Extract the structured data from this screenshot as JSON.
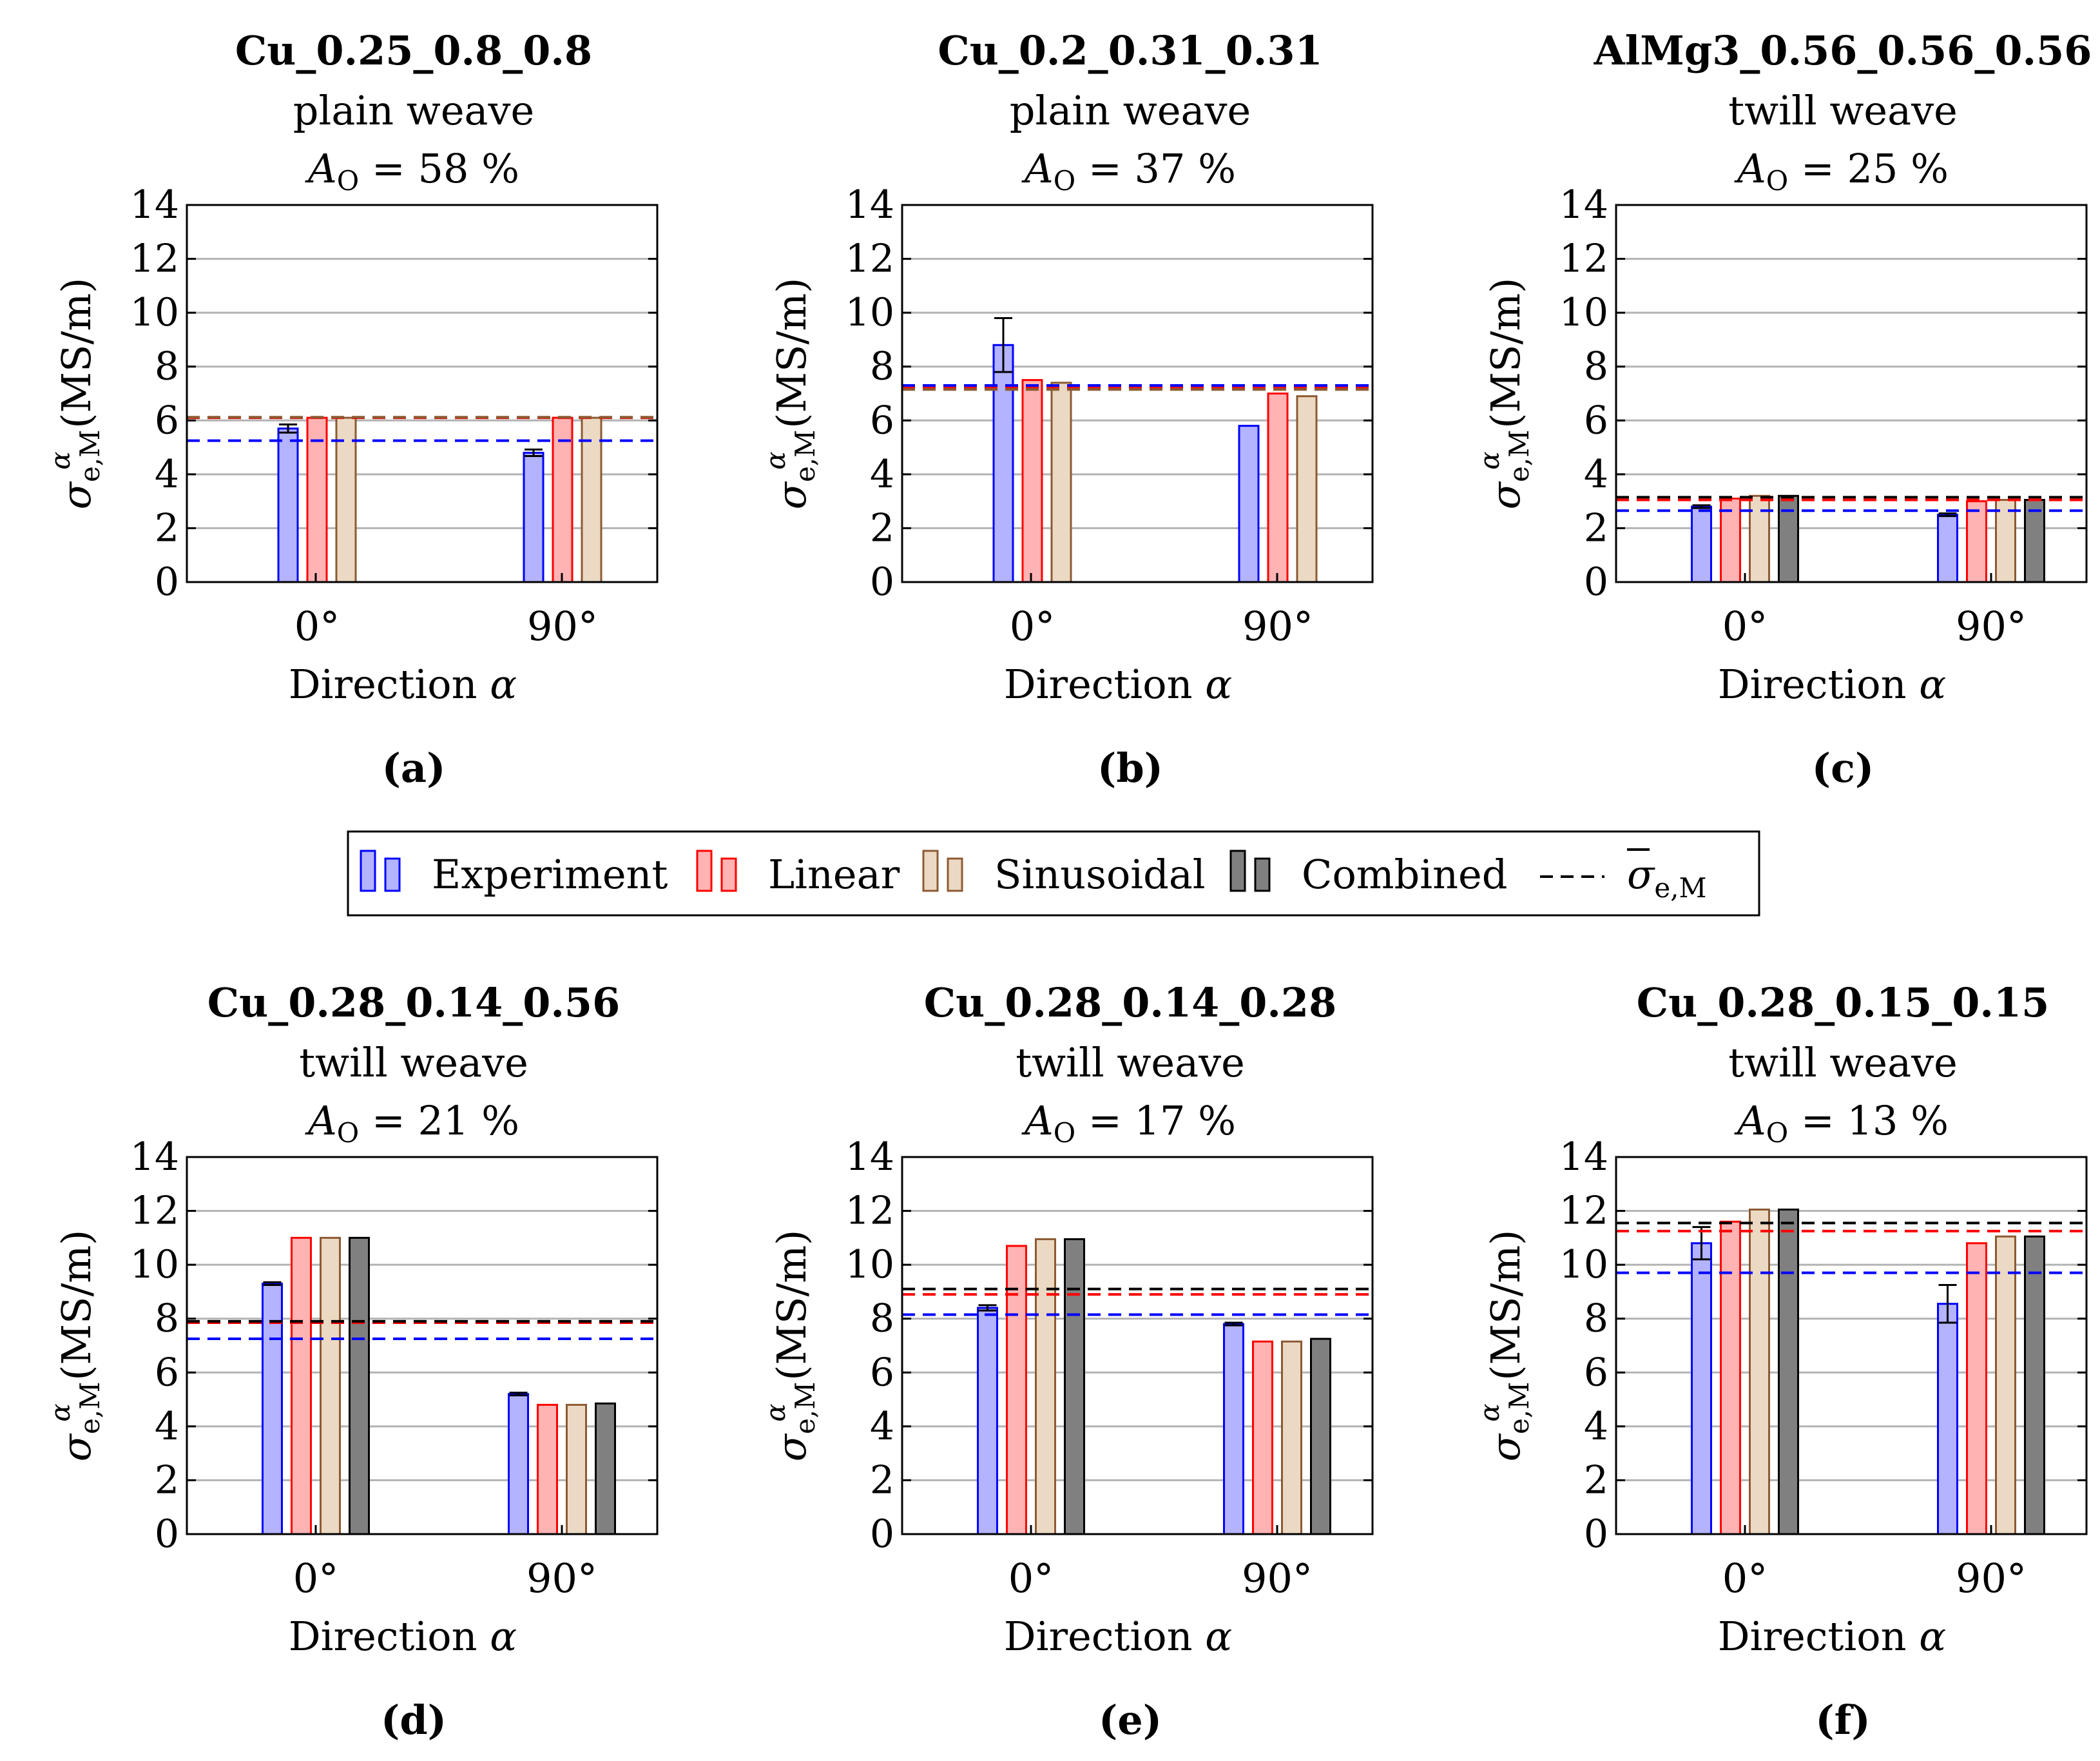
{
  "legend": {
    "items": [
      {
        "key": "experiment",
        "label": "Experiment",
        "fill": "#b3b3ff",
        "stroke": "#0000ff"
      },
      {
        "key": "linear",
        "label": "Linear",
        "fill": "#ffb3b3",
        "stroke": "#ff0000"
      },
      {
        "key": "sinusoidal",
        "label": "Sinusoidal",
        "fill": "#ecd9c3",
        "stroke": "#8c5a33"
      },
      {
        "key": "combined",
        "label": "Combined",
        "fill": "#808080",
        "stroke": "#000000"
      }
    ],
    "mean_label_sigma": "σ",
    "mean_label_sub": "e,M"
  },
  "axis": {
    "ylabel_symbol": "σ",
    "ylabel_sup": "α",
    "ylabel_sub": "e,M",
    "ylabel_unit": "(MS/m)",
    "xlabel": "Direction",
    "xlabel_symbol": "α"
  },
  "chart_data": [
    {
      "type": "bar",
      "panel": "(a)",
      "title": "Cu_0.25_0.8_0.8",
      "weave": "plain weave",
      "area_prefix": "A",
      "area_sub": "O",
      "area_value": "= 58 %",
      "categories": [
        "0°",
        "90°"
      ],
      "yticks": [
        "0",
        "2",
        "4",
        "6",
        "8",
        "10",
        "12",
        "14"
      ],
      "ylim": [
        0,
        14
      ],
      "grid": true,
      "series": [
        {
          "name": "Experiment",
          "values": [
            5.7,
            4.8
          ],
          "errors": [
            0.15,
            0.12
          ]
        },
        {
          "name": "Linear",
          "values": [
            6.1,
            6.1
          ]
        },
        {
          "name": "Sinusoidal",
          "values": [
            6.1,
            6.1
          ]
        }
      ],
      "mean_lines": [
        {
          "color": "#0000ff",
          "value": 5.25
        },
        {
          "color": "#ff0000",
          "value": 6.1
        },
        {
          "color": "#8c5a33",
          "value": 6.12
        }
      ]
    },
    {
      "type": "bar",
      "panel": "(b)",
      "title": "Cu_0.2_0.31_0.31",
      "weave": "plain weave",
      "area_prefix": "A",
      "area_sub": "O",
      "area_value": "= 37 %",
      "categories": [
        "0°",
        "90°"
      ],
      "yticks": [
        "0",
        "2",
        "4",
        "6",
        "8",
        "10",
        "12",
        "14"
      ],
      "ylim": [
        0,
        14
      ],
      "grid": true,
      "series": [
        {
          "name": "Experiment",
          "values": [
            8.8,
            5.8
          ],
          "errors": [
            1.0,
            0
          ]
        },
        {
          "name": "Linear",
          "values": [
            7.5,
            7.0
          ]
        },
        {
          "name": "Sinusoidal",
          "values": [
            7.4,
            6.9
          ]
        }
      ],
      "mean_lines": [
        {
          "color": "#0000ff",
          "value": 7.3
        },
        {
          "color": "#ff0000",
          "value": 7.2
        },
        {
          "color": "#8c5a33",
          "value": 7.15
        }
      ]
    },
    {
      "type": "bar",
      "panel": "(c)",
      "title": "AlMg3_0.56_0.56_0.56",
      "weave": "twill weave",
      "area_prefix": "A",
      "area_sub": "O",
      "area_value": "= 25 %",
      "categories": [
        "0°",
        "90°"
      ],
      "yticks": [
        "0",
        "2",
        "4",
        "6",
        "8",
        "10",
        "12",
        "14"
      ],
      "ylim": [
        0,
        14
      ],
      "grid": true,
      "series": [
        {
          "name": "Experiment",
          "values": [
            2.8,
            2.5
          ],
          "errors": [
            0.05,
            0.05
          ]
        },
        {
          "name": "Linear",
          "values": [
            3.1,
            3.0
          ]
        },
        {
          "name": "Sinusoidal",
          "values": [
            3.2,
            3.05
          ]
        },
        {
          "name": "Combined",
          "values": [
            3.2,
            3.05
          ]
        }
      ],
      "mean_lines": [
        {
          "color": "#0000ff",
          "value": 2.65
        },
        {
          "color": "#ff0000",
          "value": 3.05
        },
        {
          "color": "#000000",
          "value": 3.15
        }
      ]
    },
    {
      "type": "bar",
      "panel": "(d)",
      "title": "Cu_0.28_0.14_0.56",
      "weave": "twill weave",
      "area_prefix": "A",
      "area_sub": "O",
      "area_value": "= 21 %",
      "categories": [
        "0°",
        "90°"
      ],
      "yticks": [
        "0",
        "2",
        "4",
        "6",
        "8",
        "10",
        "12",
        "14"
      ],
      "ylim": [
        0,
        14
      ],
      "grid": true,
      "series": [
        {
          "name": "Experiment",
          "values": [
            9.3,
            5.2
          ],
          "errors": [
            0.05,
            0.05
          ]
        },
        {
          "name": "Linear",
          "values": [
            11.0,
            4.8
          ]
        },
        {
          "name": "Sinusoidal",
          "values": [
            11.0,
            4.8
          ]
        },
        {
          "name": "Combined",
          "values": [
            11.0,
            4.85
          ]
        }
      ],
      "mean_lines": [
        {
          "color": "#0000ff",
          "value": 7.25
        },
        {
          "color": "#ff0000",
          "value": 7.85
        },
        {
          "color": "#000000",
          "value": 7.9
        }
      ]
    },
    {
      "type": "bar",
      "panel": "(e)",
      "title": "Cu_0.28_0.14_0.28",
      "weave": "twill weave",
      "area_prefix": "A",
      "area_sub": "O",
      "area_value": "= 17 %",
      "categories": [
        "0°",
        "90°"
      ],
      "yticks": [
        "0",
        "2",
        "4",
        "6",
        "8",
        "10",
        "12",
        "14"
      ],
      "ylim": [
        0,
        14
      ],
      "grid": true,
      "series": [
        {
          "name": "Experiment",
          "values": [
            8.4,
            7.8
          ],
          "errors": [
            0.1,
            0.05
          ]
        },
        {
          "name": "Linear",
          "values": [
            10.7,
            7.15
          ]
        },
        {
          "name": "Sinusoidal",
          "values": [
            10.95,
            7.15
          ]
        },
        {
          "name": "Combined",
          "values": [
            10.95,
            7.25
          ]
        }
      ],
      "mean_lines": [
        {
          "color": "#0000ff",
          "value": 8.15
        },
        {
          "color": "#ff0000",
          "value": 8.9
        },
        {
          "color": "#000000",
          "value": 9.1
        }
      ]
    },
    {
      "type": "bar",
      "panel": "(f)",
      "title": "Cu_0.28_0.15_0.15",
      "weave": "twill weave",
      "area_prefix": "A",
      "area_sub": "O",
      "area_value": "= 13 %",
      "categories": [
        "0°",
        "90°"
      ],
      "yticks": [
        "0",
        "2",
        "4",
        "6",
        "8",
        "10",
        "12",
        "14"
      ],
      "ylim": [
        0,
        14
      ],
      "grid": true,
      "series": [
        {
          "name": "Experiment",
          "values": [
            10.8,
            8.55
          ],
          "errors": [
            0.6,
            0.7
          ]
        },
        {
          "name": "Linear",
          "values": [
            11.6,
            10.8
          ]
        },
        {
          "name": "Sinusoidal",
          "values": [
            12.05,
            11.05
          ]
        },
        {
          "name": "Combined",
          "values": [
            12.05,
            11.05
          ]
        }
      ],
      "mean_lines": [
        {
          "color": "#0000ff",
          "value": 9.7
        },
        {
          "color": "#ff0000",
          "value": 11.25
        },
        {
          "color": "#000000",
          "value": 11.55
        }
      ]
    }
  ]
}
